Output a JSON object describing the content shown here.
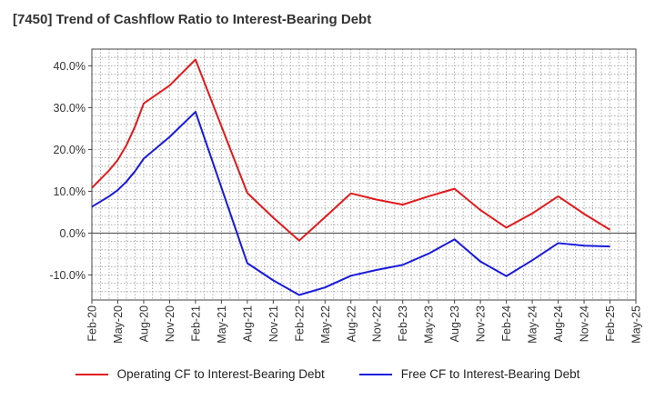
{
  "chart_data": {
    "type": "line",
    "title": "[7450]  Trend of Cashflow Ratio to Interest-Bearing Debt",
    "xlabel": "",
    "ylabel": "",
    "ylim": [
      -16,
      44
    ],
    "yticks": [
      40,
      30,
      20,
      10,
      0,
      -10
    ],
    "ytick_labels": [
      "40.0%",
      "30.0%",
      "20.0%",
      "10.0%",
      "0.0%",
      "-10.0%"
    ],
    "xtick_labels": [
      "Feb-20",
      "May-20",
      "Aug-20",
      "Nov-20",
      "Feb-21",
      "May-21",
      "Aug-21",
      "Nov-21",
      "Feb-22",
      "May-22",
      "Aug-22",
      "Nov-22",
      "Feb-23",
      "May-23",
      "Aug-23",
      "Nov-23",
      "Feb-24",
      "May-24",
      "Aug-24",
      "Nov-24",
      "Feb-25",
      "May-25"
    ],
    "grid": true,
    "legend_position": "bottom",
    "series": [
      {
        "name": "Operating CF to Interest-Bearing Debt",
        "color": "#e31a1c",
        "points": [
          [
            "Feb-20",
            10.8
          ],
          [
            "Apr-20",
            15.0
          ],
          [
            "May-20",
            17.5
          ],
          [
            "Jun-20",
            21.0
          ],
          [
            "Jul-20",
            25.5
          ],
          [
            "Aug-20",
            31.0
          ],
          [
            "Nov-20",
            35.3
          ],
          [
            "Feb-21",
            41.5
          ],
          [
            "Aug-21",
            9.6
          ],
          [
            "Nov-21",
            3.7
          ],
          [
            "Feb-22",
            -1.8
          ],
          [
            "May-22",
            3.8
          ],
          [
            "Aug-22",
            9.5
          ],
          [
            "Nov-22",
            8.0
          ],
          [
            "Feb-23",
            6.8
          ],
          [
            "May-23",
            8.8
          ],
          [
            "Aug-23",
            10.6
          ],
          [
            "Nov-23",
            5.5
          ],
          [
            "Feb-24",
            1.3
          ],
          [
            "May-24",
            4.7
          ],
          [
            "Aug-24",
            8.8
          ],
          [
            "Nov-24",
            4.6
          ],
          [
            "Feb-25",
            0.8
          ]
        ]
      },
      {
        "name": "Free CF to Interest-Bearing Debt",
        "color": "#1a1adc",
        "points": [
          [
            "Feb-20",
            6.3
          ],
          [
            "Apr-20",
            8.8
          ],
          [
            "May-20",
            10.3
          ],
          [
            "Jun-20",
            12.3
          ],
          [
            "Jul-20",
            14.8
          ],
          [
            "Aug-20",
            17.8
          ],
          [
            "Nov-20",
            23.0
          ],
          [
            "Feb-21",
            29.0
          ],
          [
            "Aug-21",
            -7.2
          ],
          [
            "Nov-21",
            -11.3
          ],
          [
            "Feb-22",
            -14.8
          ],
          [
            "May-22",
            -13.0
          ],
          [
            "Aug-22",
            -10.2
          ],
          [
            "Nov-22",
            -8.8
          ],
          [
            "Feb-23",
            -7.6
          ],
          [
            "May-23",
            -4.9
          ],
          [
            "Aug-23",
            -1.5
          ],
          [
            "Nov-23",
            -6.8
          ],
          [
            "Feb-24",
            -10.3
          ],
          [
            "May-24",
            -6.5
          ],
          [
            "Aug-24",
            -2.4
          ],
          [
            "Nov-24",
            -3.0
          ],
          [
            "Feb-25",
            -3.2
          ]
        ]
      }
    ]
  }
}
